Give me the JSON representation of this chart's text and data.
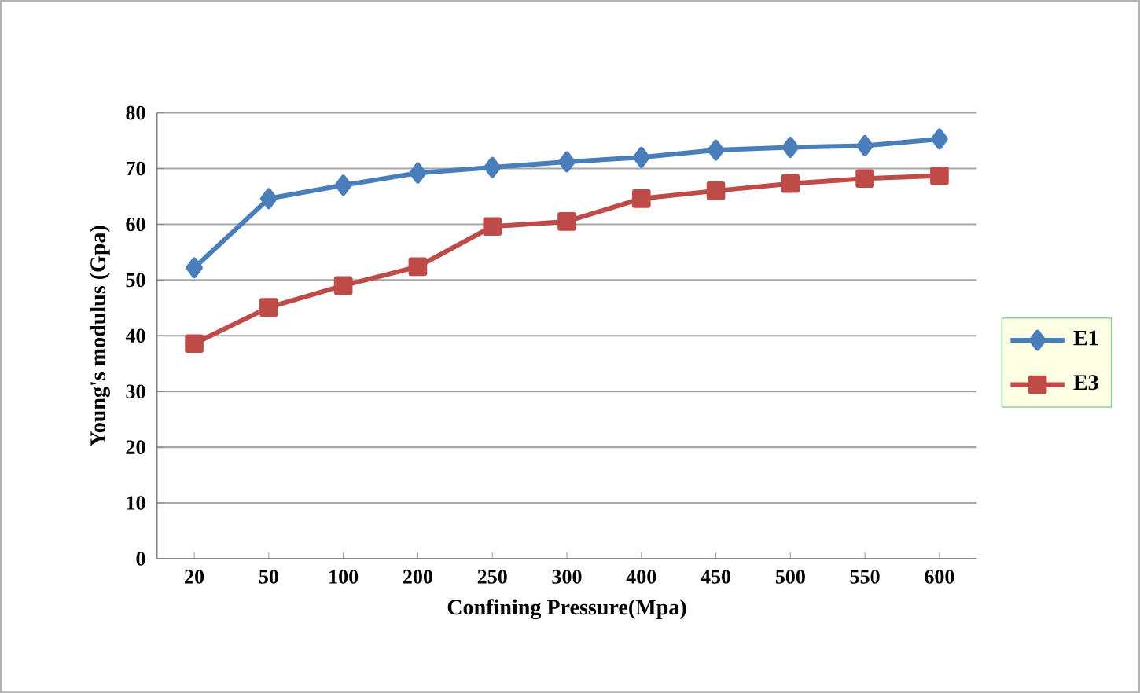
{
  "chart_data": {
    "type": "line",
    "xlabel": "Confining Pressure(Mpa)",
    "ylabel": "Young's modulus  (Gpa)",
    "categories": [
      "20",
      "50",
      "100",
      "200",
      "250",
      "300",
      "400",
      "450",
      "500",
      "550",
      "600"
    ],
    "series": [
      {
        "name": "E1",
        "color": "#4a7ebb",
        "marker": "diamond",
        "values": [
          52.2,
          64.6,
          67.0,
          69.2,
          70.2,
          71.2,
          72.0,
          73.3,
          73.8,
          74.1,
          75.3
        ]
      },
      {
        "name": "E3",
        "color": "#be4b48",
        "marker": "square",
        "values": [
          38.6,
          45.1,
          49.0,
          52.4,
          59.6,
          60.5,
          64.6,
          66.0,
          67.3,
          68.2,
          68.7
        ]
      }
    ],
    "ylim": [
      0,
      80
    ],
    "yticks": [
      0,
      10,
      20,
      30,
      40,
      50,
      60,
      70,
      80
    ],
    "grid": "y",
    "legend": "right"
  }
}
